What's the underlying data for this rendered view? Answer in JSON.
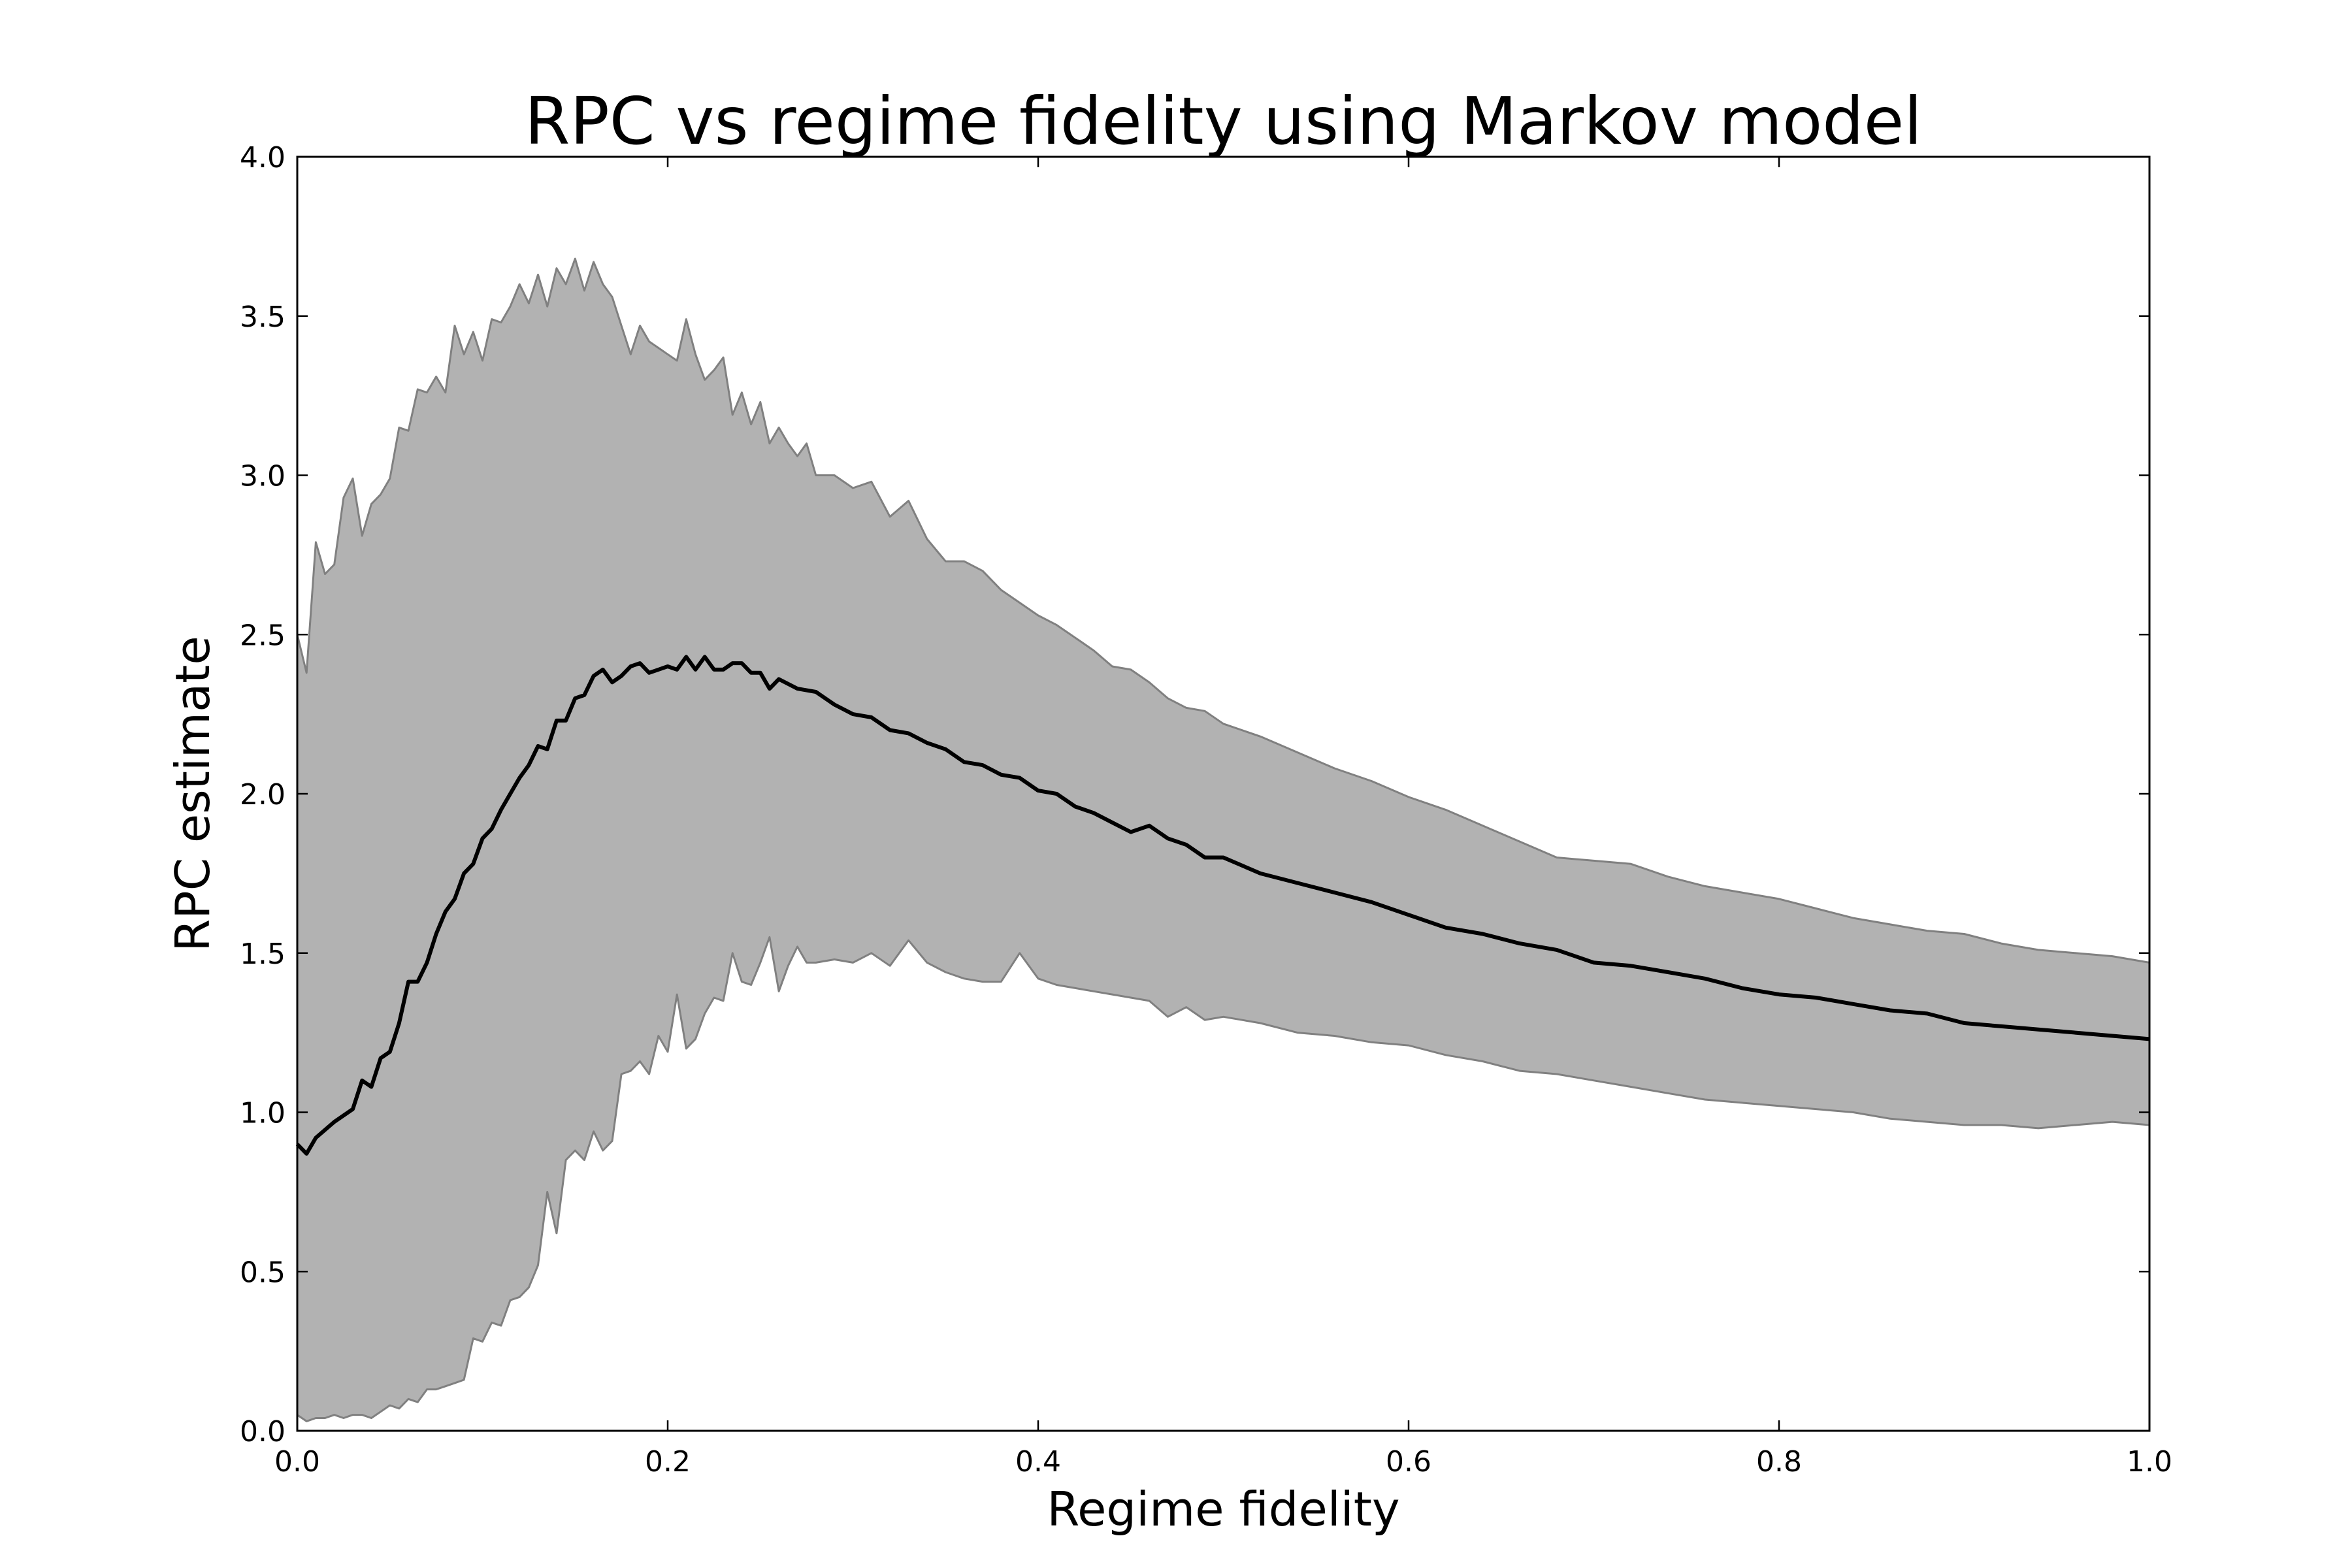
{
  "chart_data": {
    "type": "area",
    "title": "RPC vs regime fidelity using Markov model",
    "xlabel": "Regime fidelity",
    "ylabel": "RPC estimate",
    "xlim": [
      0.0,
      1.0
    ],
    "ylim": [
      0.0,
      4.0
    ],
    "grid": false,
    "legend": "none",
    "xticks": [
      0.0,
      0.2,
      0.4,
      0.6,
      0.8,
      1.0
    ],
    "xtick_labels": [
      "0.0",
      "0.2",
      "0.4",
      "0.6",
      "0.8",
      "1.0"
    ],
    "yticks": [
      0.0,
      0.5,
      1.0,
      1.5,
      2.0,
      2.5,
      3.0,
      3.5,
      4.0
    ],
    "ytick_labels": [
      "0.0",
      "0.5",
      "1.0",
      "1.5",
      "2.0",
      "2.5",
      "3.0",
      "3.5",
      "4.0"
    ],
    "colors": {
      "band_fill": "#b2b2b2",
      "band_edge": "#808080",
      "mean_line": "#000000"
    },
    "series": [
      {
        "role": "mean",
        "x": [
          0.0,
          0.005,
          0.01,
          0.02,
          0.03,
          0.035,
          0.04,
          0.045,
          0.05,
          0.055,
          0.06,
          0.065,
          0.07,
          0.075,
          0.08,
          0.085,
          0.09,
          0.095,
          0.1,
          0.105,
          0.11,
          0.115,
          0.12,
          0.125,
          0.13,
          0.135,
          0.14,
          0.145,
          0.15,
          0.155,
          0.16,
          0.165,
          0.17,
          0.175,
          0.18,
          0.185,
          0.19,
          0.195,
          0.2,
          0.205,
          0.21,
          0.215,
          0.22,
          0.225,
          0.23,
          0.235,
          0.24,
          0.245,
          0.25,
          0.255,
          0.26,
          0.27,
          0.28,
          0.29,
          0.3,
          0.31,
          0.32,
          0.33,
          0.34,
          0.35,
          0.36,
          0.37,
          0.38,
          0.39,
          0.4,
          0.41,
          0.42,
          0.43,
          0.44,
          0.45,
          0.46,
          0.47,
          0.48,
          0.49,
          0.5,
          0.52,
          0.54,
          0.56,
          0.58,
          0.6,
          0.62,
          0.64,
          0.66,
          0.68,
          0.7,
          0.72,
          0.74,
          0.76,
          0.78,
          0.8,
          0.82,
          0.84,
          0.86,
          0.88,
          0.9,
          0.92,
          0.94,
          0.96,
          0.98,
          1.0
        ],
        "y": [
          0.9,
          0.87,
          0.92,
          0.97,
          1.01,
          1.1,
          1.08,
          1.17,
          1.19,
          1.28,
          1.41,
          1.41,
          1.47,
          1.56,
          1.63,
          1.67,
          1.75,
          1.78,
          1.86,
          1.89,
          1.95,
          2.0,
          2.05,
          2.09,
          2.15,
          2.14,
          2.23,
          2.23,
          2.3,
          2.31,
          2.37,
          2.39,
          2.35,
          2.37,
          2.4,
          2.41,
          2.38,
          2.39,
          2.4,
          2.39,
          2.43,
          2.39,
          2.43,
          2.39,
          2.39,
          2.41,
          2.41,
          2.38,
          2.38,
          2.33,
          2.36,
          2.33,
          2.32,
          2.28,
          2.25,
          2.24,
          2.2,
          2.19,
          2.16,
          2.14,
          2.1,
          2.09,
          2.06,
          2.05,
          2.01,
          2.0,
          1.96,
          1.94,
          1.91,
          1.88,
          1.9,
          1.86,
          1.84,
          1.8,
          1.8,
          1.75,
          1.72,
          1.69,
          1.66,
          1.62,
          1.58,
          1.56,
          1.53,
          1.51,
          1.47,
          1.46,
          1.44,
          1.42,
          1.39,
          1.37,
          1.36,
          1.34,
          1.32,
          1.31,
          1.28,
          1.27,
          1.26,
          1.25,
          1.24,
          1.23
        ]
      },
      {
        "role": "upper",
        "x": [
          0.0,
          0.005,
          0.01,
          0.015,
          0.02,
          0.025,
          0.03,
          0.035,
          0.04,
          0.045,
          0.05,
          0.055,
          0.06,
          0.065,
          0.07,
          0.075,
          0.08,
          0.085,
          0.09,
          0.095,
          0.1,
          0.105,
          0.11,
          0.115,
          0.12,
          0.125,
          0.13,
          0.135,
          0.14,
          0.145,
          0.15,
          0.155,
          0.16,
          0.165,
          0.17,
          0.175,
          0.18,
          0.185,
          0.19,
          0.195,
          0.2,
          0.205,
          0.21,
          0.215,
          0.22,
          0.225,
          0.23,
          0.235,
          0.24,
          0.245,
          0.25,
          0.255,
          0.26,
          0.265,
          0.27,
          0.275,
          0.28,
          0.29,
          0.3,
          0.31,
          0.32,
          0.33,
          0.34,
          0.35,
          0.36,
          0.37,
          0.38,
          0.39,
          0.4,
          0.41,
          0.42,
          0.43,
          0.44,
          0.45,
          0.46,
          0.47,
          0.48,
          0.49,
          0.5,
          0.52,
          0.54,
          0.56,
          0.58,
          0.6,
          0.62,
          0.64,
          0.66,
          0.68,
          0.7,
          0.72,
          0.74,
          0.76,
          0.78,
          0.8,
          0.82,
          0.84,
          0.86,
          0.88,
          0.9,
          0.92,
          0.94,
          0.96,
          0.98,
          1.0
        ],
        "y": [
          2.5,
          2.38,
          2.79,
          2.69,
          2.72,
          2.93,
          2.99,
          2.81,
          2.91,
          2.94,
          2.99,
          3.15,
          3.14,
          3.27,
          3.26,
          3.31,
          3.26,
          3.47,
          3.38,
          3.45,
          3.36,
          3.49,
          3.48,
          3.53,
          3.6,
          3.54,
          3.63,
          3.53,
          3.65,
          3.6,
          3.68,
          3.58,
          3.67,
          3.6,
          3.56,
          3.47,
          3.38,
          3.47,
          3.42,
          3.4,
          3.38,
          3.36,
          3.49,
          3.38,
          3.3,
          3.33,
          3.37,
          3.19,
          3.26,
          3.16,
          3.23,
          3.1,
          3.15,
          3.1,
          3.06,
          3.1,
          3.0,
          3.0,
          2.96,
          2.98,
          2.87,
          2.92,
          2.8,
          2.73,
          2.73,
          2.7,
          2.64,
          2.6,
          2.56,
          2.53,
          2.49,
          2.45,
          2.4,
          2.39,
          2.35,
          2.3,
          2.27,
          2.26,
          2.22,
          2.18,
          2.13,
          2.08,
          2.04,
          1.99,
          1.95,
          1.9,
          1.85,
          1.8,
          1.79,
          1.78,
          1.74,
          1.71,
          1.69,
          1.67,
          1.64,
          1.61,
          1.59,
          1.57,
          1.56,
          1.53,
          1.51,
          1.5,
          1.49,
          1.47
        ]
      },
      {
        "role": "lower",
        "x": [
          0.0,
          0.005,
          0.01,
          0.015,
          0.02,
          0.025,
          0.03,
          0.035,
          0.04,
          0.045,
          0.05,
          0.055,
          0.06,
          0.065,
          0.07,
          0.075,
          0.08,
          0.085,
          0.09,
          0.095,
          0.1,
          0.105,
          0.11,
          0.115,
          0.12,
          0.125,
          0.13,
          0.135,
          0.14,
          0.145,
          0.15,
          0.155,
          0.16,
          0.165,
          0.17,
          0.175,
          0.18,
          0.185,
          0.19,
          0.195,
          0.2,
          0.205,
          0.21,
          0.215,
          0.22,
          0.225,
          0.23,
          0.235,
          0.24,
          0.245,
          0.25,
          0.255,
          0.26,
          0.265,
          0.27,
          0.275,
          0.28,
          0.29,
          0.3,
          0.31,
          0.32,
          0.33,
          0.34,
          0.35,
          0.36,
          0.37,
          0.38,
          0.39,
          0.4,
          0.41,
          0.42,
          0.43,
          0.44,
          0.45,
          0.46,
          0.47,
          0.48,
          0.49,
          0.5,
          0.52,
          0.54,
          0.56,
          0.58,
          0.6,
          0.62,
          0.64,
          0.66,
          0.68,
          0.7,
          0.72,
          0.74,
          0.76,
          0.78,
          0.8,
          0.82,
          0.84,
          0.86,
          0.88,
          0.9,
          0.92,
          0.94,
          0.96,
          0.98,
          1.0
        ],
        "y": [
          0.05,
          0.03,
          0.04,
          0.04,
          0.05,
          0.04,
          0.05,
          0.05,
          0.04,
          0.06,
          0.08,
          0.07,
          0.1,
          0.09,
          0.13,
          0.13,
          0.14,
          0.15,
          0.16,
          0.29,
          0.28,
          0.34,
          0.33,
          0.41,
          0.42,
          0.45,
          0.52,
          0.75,
          0.62,
          0.85,
          0.88,
          0.85,
          0.94,
          0.88,
          0.91,
          1.12,
          1.13,
          1.16,
          1.12,
          1.24,
          1.19,
          1.37,
          1.2,
          1.23,
          1.31,
          1.36,
          1.35,
          1.5,
          1.41,
          1.4,
          1.47,
          1.55,
          1.38,
          1.46,
          1.52,
          1.47,
          1.47,
          1.48,
          1.47,
          1.5,
          1.46,
          1.54,
          1.47,
          1.44,
          1.42,
          1.41,
          1.41,
          1.5,
          1.42,
          1.4,
          1.39,
          1.38,
          1.37,
          1.36,
          1.35,
          1.3,
          1.33,
          1.29,
          1.3,
          1.28,
          1.25,
          1.24,
          1.22,
          1.21,
          1.18,
          1.16,
          1.13,
          1.12,
          1.1,
          1.08,
          1.06,
          1.04,
          1.03,
          1.02,
          1.01,
          1.0,
          0.98,
          0.97,
          0.96,
          0.96,
          0.95,
          0.96,
          0.97,
          0.96
        ]
      }
    ]
  }
}
